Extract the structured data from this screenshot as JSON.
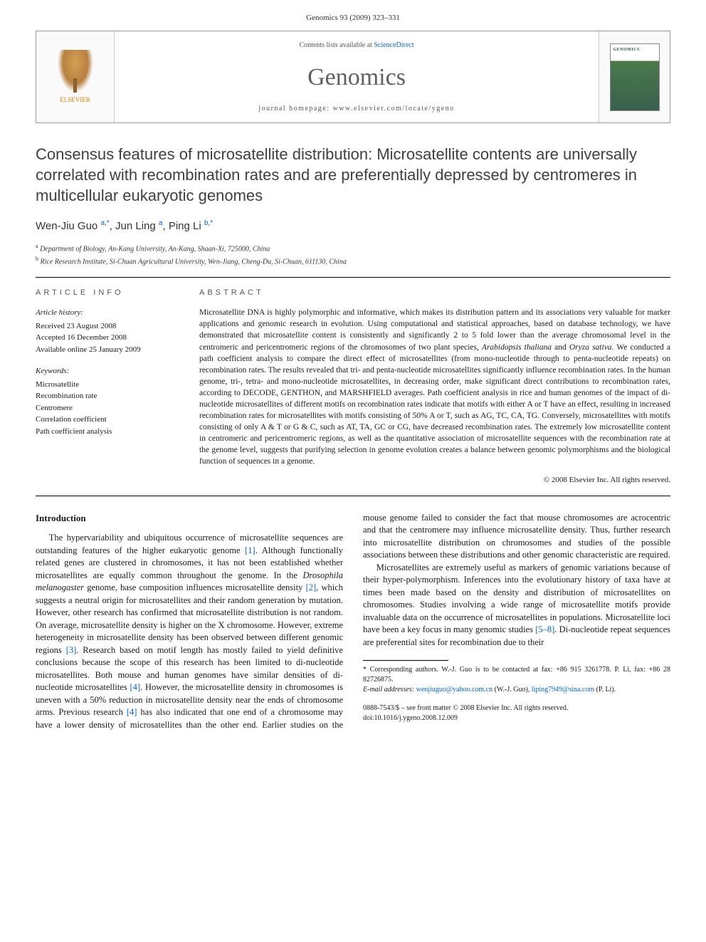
{
  "page_header": "Genomics 93 (2009) 323–331",
  "banner": {
    "availability_prefix": "Contents lists available at ",
    "availability_link": "ScienceDirect",
    "journal": "Genomics",
    "homepage_label": "journal homepage: ",
    "homepage_url": "www.elsevier.com/locate/ygeno",
    "publisher_name": "ELSEVIER",
    "cover_label": "GENOMICS"
  },
  "title": "Consensus features of microsatellite distribution: Microsatellite contents are universally correlated with recombination rates and are preferentially depressed by centromeres in multicellular eukaryotic genomes",
  "authors": [
    {
      "name": "Wen-Jiu Guo",
      "sup": "a,*"
    },
    {
      "name": "Jun Ling",
      "sup": "a"
    },
    {
      "name": "Ping Li",
      "sup": "b,*"
    }
  ],
  "affiliations": [
    {
      "sup": "a",
      "text": "Department of Biology, An-Kang University, An-Kang, Shaan-Xi, 725000, China"
    },
    {
      "sup": "b",
      "text": "Rice Research Institute, Si-Chuan Agricultural University, Wen-Jiang, Cheng-Du, Si-Chuan, 611130, China"
    }
  ],
  "article_info": {
    "label": "ARTICLE INFO",
    "history_head": "Article history:",
    "history": [
      "Received 23 August 2008",
      "Accepted 16 December 2008",
      "Available online 25 January 2009"
    ],
    "keywords_head": "Keywords:",
    "keywords": [
      "Microsatellite",
      "Recombination rate",
      "Centromere",
      "Correlation coefficient",
      "Path coefficient analysis"
    ]
  },
  "abstract": {
    "label": "ABSTRACT",
    "text_parts": [
      "Microsatellite DNA is highly polymorphic and informative, which makes its distribution pattern and its associations very valuable for marker applications and genomic research in evolution. Using computational and statistical approaches, based on database technology, we have demonstrated that microsatellite content is consistently and significantly 2 to 5 fold lower than the average chromosomal level in the centromeric and pericentromeric regions of the chromosomes of two plant species, ",
      "Arabidopsis thaliana",
      " and ",
      "Oryza sativa",
      ". We conducted a path coefficient analysis to compare the direct effect of microsatellites (from mono-nucleotide through to penta-nucleotide repeats) on recombination rates. The results revealed that tri- and penta-nucleotide microsatellites significantly influence recombination rates. In the human genome, tri-, tetra- and mono-nucleotide microsatellites, in decreasing order, make significant direct contributions to recombination rates, according to DECODE, GENTHON, and MARSHFIELD averages. Path coefficient analysis in rice and human genomes of the impact of di-nucleotide microsatellites of different motifs on recombination rates indicate that motifs with either A or T have an effect, resulting in increased recombination rates for microsatellites with motifs consisting of 50% A or T, such as AG, TC, CA, TG. Conversely, microsatellites with motifs consisting of only A & T or G & C, such as AT, TA, GC or CG, have decreased recombination rates. The extremely low microsatellite content in centromeric and pericentromeric regions, as well as the quantitative association of microsatellite sequences with the recombination rate at the genome level, suggests that purifying selection in genome evolution creates a balance between genomic polymorphisms and the biological function of sequences in a genome."
    ],
    "copyright": "© 2008 Elsevier Inc. All rights reserved."
  },
  "intro": {
    "heading": "Introduction",
    "p1a": "The hypervariability and ubiquitous occurrence of microsatellite sequences are outstanding features of the higher eukaryotic genome ",
    "ref1": "[1]",
    "p1b": ". Although functionally related genes are clustered in chromosomes, it has not been established whether microsatellites are equally common throughout the genome. In the ",
    "em1": "Drosophila melanogaster",
    "p1c": " genome, base composition influences microsatellite density ",
    "ref2": "[2]",
    "p1d": ", which suggests a neutral origin for microsatellites and their random generation by mutation. However, other research has confirmed that microsatellite distribution is not random. On average, microsatellite density is higher on the X chromosome. However, extreme heterogeneity in microsatellite density has been observed between different genomic regions ",
    "ref3": "[3]",
    "p1e": ". Research based on motif length has mostly failed to yield definitive conclusions because the scope of this research has ",
    "p2a": "been limited to di-nucleotide microsatellites. Both mouse and human genomes have similar densities of di-nucleotide microsatellites ",
    "ref4": "[4]",
    "p2b": ". However, the microsatellite density in chromosomes is uneven with a 50% reduction in microsatellite density near the ends of chromosome arms. Previous research ",
    "ref4b": "[4]",
    "p2c": " has also indicated that one end of a chromosome may have a lower density of microsatellites than the other end. Earlier studies on the mouse genome failed to consider the fact that mouse chromosomes are acrocentric and that the centromere may influence microsatellite density. Thus, further research into microsatellite distribution on chromosomes and studies of the possible associations between these distributions and other genomic characteristic are required.",
    "p3a": "Microsatellites are extremely useful as markers of genomic variations because of their hyper-polymorphism. Inferences into the evolutionary history of taxa have at times been made based on the density and distribution of microsatellites on chromosomes. Studies involving a wide range of microsatellite motifs provide invaluable data on the occurrence of microsatellites in populations. Microsatellite loci have been a key focus in many genomic studies ",
    "ref58": "[5–8]",
    "p3b": ". Di-nucleotide repeat sequences are preferential sites for recombination due to their"
  },
  "footnotes": {
    "corr": "* Corresponding authors. W.-J. Guo is to be contacted at fax: +86 915 3261778. P. Li, fax: +86 28 82726875.",
    "email_label": "E-mail addresses: ",
    "email1": "wenjiuguo@yahoo.com.cn",
    "email1_who": " (W.-J. Guo), ",
    "email2": "liping7949@sina.com",
    "email2_who": " (P. Li)."
  },
  "bottom": {
    "line1": "0888-7543/$ – see front matter © 2008 Elsevier Inc. All rights reserved.",
    "line2": "doi:10.1016/j.ygeno.2008.12.009"
  },
  "colors": {
    "link": "#0066cc",
    "title_gray": "#404040",
    "journal_gray": "#606060",
    "elsevier_orange": "#e67a00"
  }
}
